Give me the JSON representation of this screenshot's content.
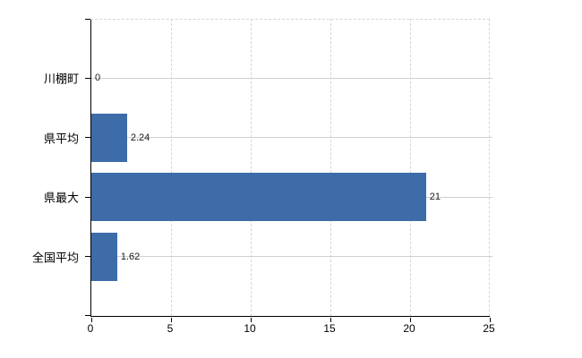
{
  "chart_data": {
    "type": "bar",
    "orientation": "horizontal",
    "categories": [
      "川棚町",
      "県平均",
      "県最大",
      "全国平均"
    ],
    "values": [
      0,
      2.24,
      21,
      1.62
    ],
    "data_labels": [
      "0",
      "2.24",
      "21",
      "1.62"
    ],
    "xlim": [
      0,
      25
    ],
    "xticks": [
      0,
      5,
      10,
      15,
      20,
      25
    ],
    "grid": true,
    "legend": false,
    "colors": {
      "bar": "#3e6ca9",
      "solid_gridline": "#ccd2cc",
      "dashed_gridline": "#d6d6d6",
      "axis": "#000000",
      "text": "#1a1a1a",
      "background": "#ffffff"
    }
  }
}
